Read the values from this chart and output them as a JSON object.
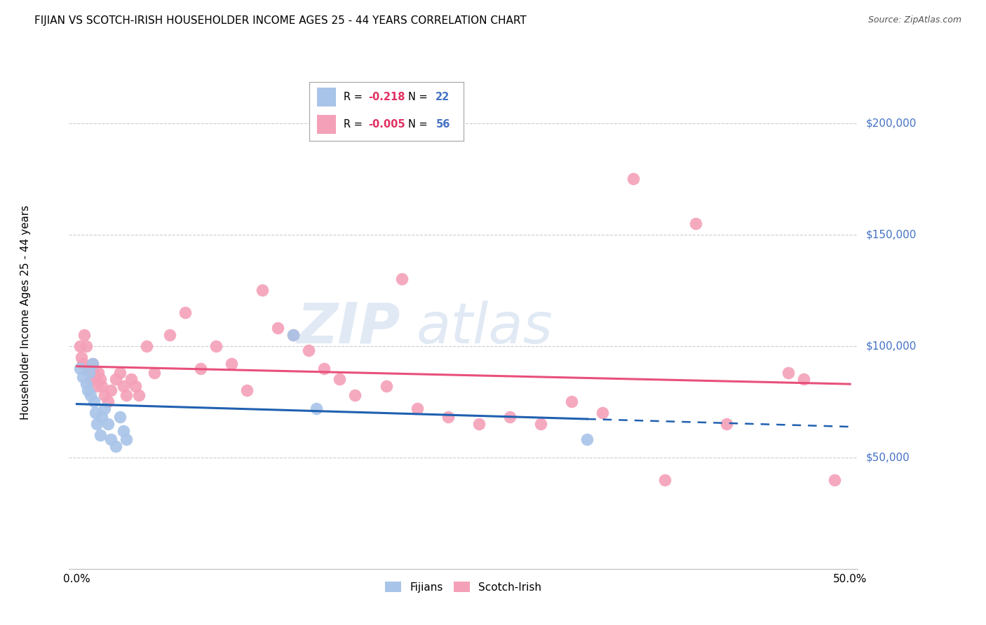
{
  "title": "FIJIAN VS SCOTCH-IRISH HOUSEHOLDER INCOME AGES 25 - 44 YEARS CORRELATION CHART",
  "source": "Source: ZipAtlas.com",
  "xlabel_ticks": [
    "0.0%",
    "",
    "",
    "",
    "",
    "50.0%"
  ],
  "xlabel_vals": [
    0.0,
    0.1,
    0.2,
    0.3,
    0.4,
    0.5
  ],
  "ylabel": "Householder Income Ages 25 - 44 years",
  "ylabel_ticks": [
    "$50,000",
    "$100,000",
    "$150,000",
    "$200,000"
  ],
  "ylabel_vals": [
    50000,
    100000,
    150000,
    200000
  ],
  "xlim": [
    -0.005,
    0.505
  ],
  "ylim": [
    0,
    230000
  ],
  "fijian_color": "#a8c4e8",
  "scotch_color": "#f4a0b8",
  "fijian_line_color": "#2060b0",
  "scotch_line_color": "#e8507a",
  "watermark_zip": "ZIP",
  "watermark_atlas": "atlas",
  "fijian_x": [
    0.002,
    0.004,
    0.006,
    0.007,
    0.008,
    0.009,
    0.01,
    0.011,
    0.012,
    0.013,
    0.015,
    0.016,
    0.018,
    0.02,
    0.022,
    0.025,
    0.028,
    0.03,
    0.032,
    0.14,
    0.155,
    0.33
  ],
  "fijian_y": [
    90000,
    86000,
    83000,
    80000,
    88000,
    78000,
    92000,
    75000,
    70000,
    65000,
    60000,
    68000,
    72000,
    65000,
    58000,
    55000,
    68000,
    62000,
    58000,
    105000,
    72000,
    58000
  ],
  "scotch_x": [
    0.002,
    0.003,
    0.004,
    0.005,
    0.006,
    0.007,
    0.008,
    0.009,
    0.01,
    0.011,
    0.012,
    0.013,
    0.014,
    0.015,
    0.016,
    0.018,
    0.02,
    0.022,
    0.025,
    0.028,
    0.03,
    0.032,
    0.035,
    0.038,
    0.04,
    0.045,
    0.05,
    0.06,
    0.07,
    0.08,
    0.09,
    0.1,
    0.11,
    0.12,
    0.13,
    0.14,
    0.15,
    0.16,
    0.17,
    0.18,
    0.2,
    0.21,
    0.22,
    0.24,
    0.26,
    0.28,
    0.3,
    0.32,
    0.34,
    0.36,
    0.38,
    0.4,
    0.42,
    0.46,
    0.47,
    0.49
  ],
  "scotch_y": [
    100000,
    95000,
    92000,
    105000,
    100000,
    90000,
    88000,
    85000,
    92000,
    88000,
    85000,
    82000,
    88000,
    85000,
    82000,
    78000,
    75000,
    80000,
    85000,
    88000,
    82000,
    78000,
    85000,
    82000,
    78000,
    100000,
    88000,
    105000,
    115000,
    90000,
    100000,
    92000,
    80000,
    125000,
    108000,
    105000,
    98000,
    90000,
    85000,
    78000,
    82000,
    130000,
    72000,
    68000,
    65000,
    68000,
    65000,
    75000,
    70000,
    175000,
    40000,
    155000,
    65000,
    88000,
    85000,
    40000
  ]
}
